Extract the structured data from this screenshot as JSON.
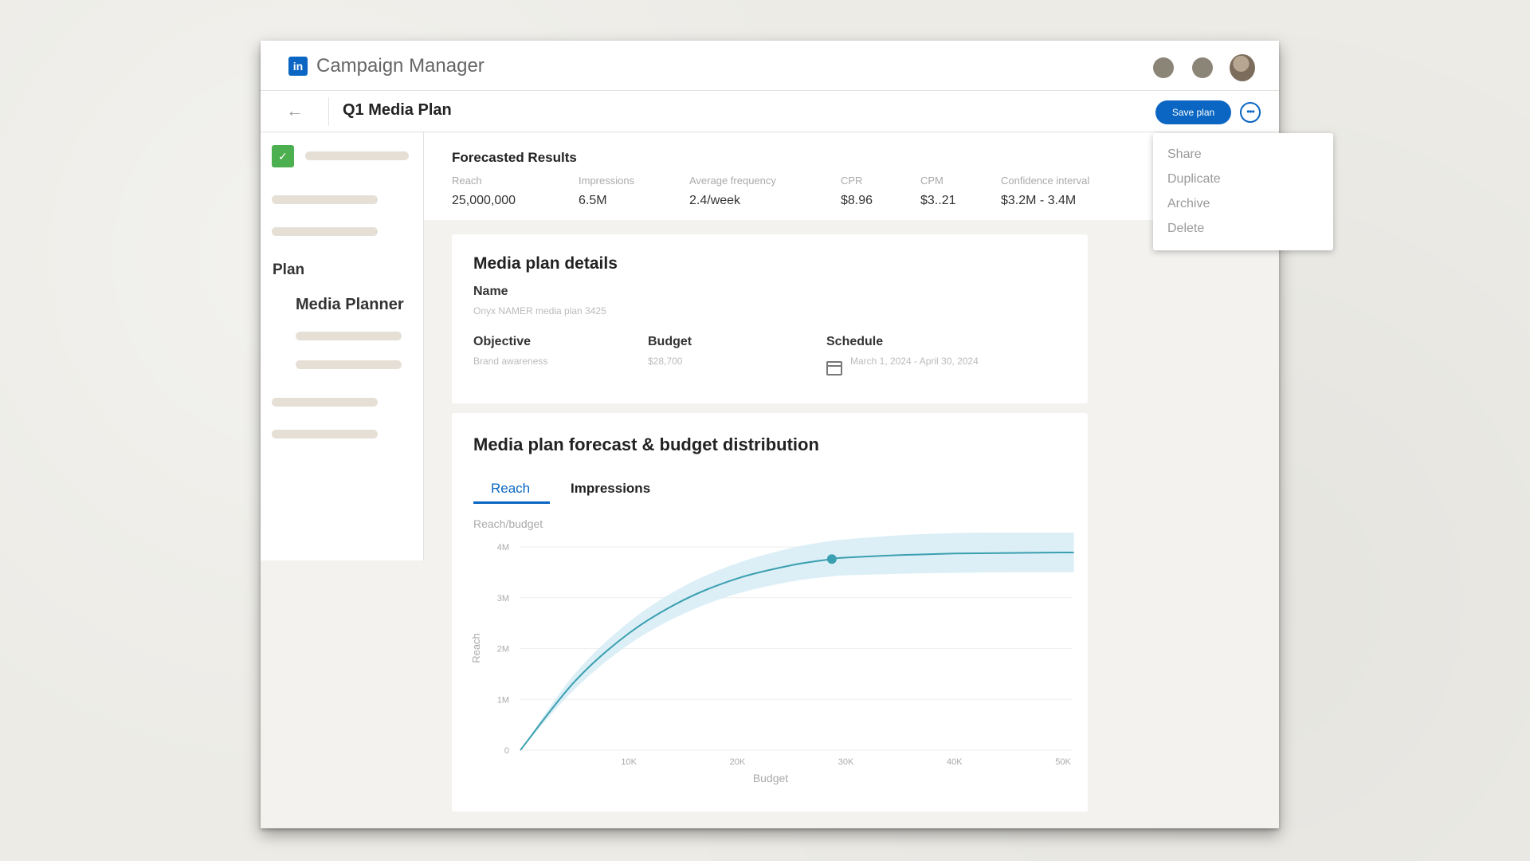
{
  "app": {
    "title": "Campaign Manager",
    "logo": "in"
  },
  "subbar": {
    "back_icon": "back-arrow-icon",
    "title": "Q1 Media Plan",
    "save_label": "Save plan",
    "more_icon": "more-icon"
  },
  "sidebar": {
    "plan_label": "Plan",
    "media_planner_label": "Media Planner"
  },
  "forecast": {
    "title": "Forecasted Results",
    "metrics": [
      {
        "label": "Reach",
        "value": "25,000,000"
      },
      {
        "label": "Impressions",
        "value": "6.5M"
      },
      {
        "label": "Average frequency",
        "value": "2.4/week"
      },
      {
        "label": "CPR",
        "value": "$8.96"
      },
      {
        "label": "CPM",
        "value": "$3..21"
      },
      {
        "label": "Confidence interval",
        "value": "$3.2M - 3.4M"
      }
    ]
  },
  "details": {
    "title": "Media plan details",
    "name_label": "Name",
    "name_value": "Onyx NAMER media plan 3425",
    "objective_label": "Objective",
    "objective_value": "Brand awareness",
    "budget_label": "Budget",
    "budget_value": "$28,700",
    "schedule_label": "Schedule",
    "schedule_value": "March 1, 2024 - April 30, 2024"
  },
  "forecast_card": {
    "title": "Media plan forecast & budget distribution",
    "tabs": [
      "Reach",
      "Impressions"
    ],
    "active_tab": "Reach"
  },
  "menu": {
    "items": [
      "Share",
      "Duplicate",
      "Archive",
      "Delete"
    ]
  },
  "colors": {
    "accent": "#0a66c2",
    "curve": "#3a9fb0",
    "band": "#d6ecf5"
  },
  "chart_data": {
    "type": "line",
    "title": "Reach/budget",
    "xlabel": "Budget",
    "ylabel": "Reach",
    "x_ticks": [
      "10K",
      "20K",
      "30K",
      "40K",
      "50K"
    ],
    "y_ticks": [
      "0",
      "1M",
      "2M",
      "3M",
      "4M"
    ],
    "xlim": [
      0,
      50000
    ],
    "ylim": [
      0,
      4000000
    ],
    "grid": true,
    "series": [
      {
        "x": [
          0,
          5000,
          10000,
          15000,
          20000,
          25000,
          28700,
          30000,
          35000,
          40000,
          45000,
          50000,
          51000
        ],
        "y": [
          0,
          1350000,
          2300000,
          2950000,
          3380000,
          3640000,
          3760000,
          3790000,
          3840000,
          3870000,
          3880000,
          3890000,
          3890000
        ],
        "upper": [
          0,
          1500000,
          2520000,
          3220000,
          3680000,
          3980000,
          4120000,
          4150000,
          4230000,
          4270000,
          4290000,
          4300000,
          4300000
        ],
        "lower": [
          0,
          1200000,
          2080000,
          2680000,
          3080000,
          3320000,
          3420000,
          3440000,
          3470000,
          3490000,
          3500000,
          3500000,
          3500000
        ]
      }
    ],
    "highlight": {
      "x": 28700,
      "y": 3760000
    }
  }
}
